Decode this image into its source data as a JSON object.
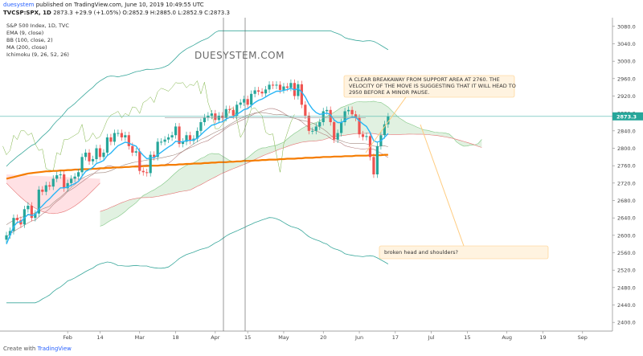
{
  "header": {
    "publisher_line": "published on TradingView.com, June 10, 2019 10:49:55 UTC",
    "publisher": "duesystem",
    "symbol": "TVCSP:SPX, 1D",
    "ohlc": "2873.3 +29.9 (+1.05%) O:2852.9 H:2885.0 L:2852.9 C:2873.3"
  },
  "legend": {
    "title": "S&P 500 Index, 1D, TVC",
    "indicators": [
      "EMA (9, close)",
      "BB (100, close, 2)",
      "MA (200, close)",
      "Ichimoku (9, 26, 52, 26)"
    ]
  },
  "watermark": "DUESYSTEM.COM",
  "footer": {
    "prefix": "Create with",
    "brand": "TradingView"
  },
  "annotations": {
    "breakaway": "A CLEAR BREAKAWAY FROM SUPPORT AREA AT 2760. THE VELOCITY OF THE MOVE IS SUGGESTING THAT IT WILL HEAD TO 2950 BEFORE A MINOR PAUSE.",
    "breakaway_lines": [
      "A CLEAR BREAKAWAY FROM SUPPORT AREA AT 2760. THE",
      "VELOCITY OF THE MOVE IS SUGGESTING THAT IT WILL HEAD TO",
      "2950 BEFORE A MINOR PAUSE."
    ],
    "shoulders": "broken head and shoulders?"
  },
  "colors": {
    "up": "#26a69a",
    "down": "#ef5350",
    "ema": "#29b6f6",
    "bb": "#3aa89c",
    "ma": "#f57c00",
    "ichimoku_kijun": "#a1887f",
    "cloud_up": "#c8e6c9",
    "cloud_down": "#ffcdd2",
    "note_bg": "#fff3e0",
    "note_border": "#ffcc80"
  },
  "chart_data": {
    "type": "candlestick",
    "title": "S&P 500 Index, 1D, TVC",
    "last_price": 2873.3,
    "last_price_label": "2873.3",
    "ylim": [
      2380,
      3100
    ],
    "y_ticks": [
      2400,
      2440,
      2480,
      2520,
      2560,
      2600,
      2640,
      2680,
      2720,
      2760,
      2800,
      2840,
      2880,
      2920,
      2960,
      3000,
      3040,
      3080
    ],
    "y_tick_labels": [
      "2400.0",
      "2440.0",
      "2480.0",
      "2520.0",
      "2560.0",
      "2600.0",
      "2640.0",
      "2680.0",
      "2720.0",
      "2760.0",
      "2800.0",
      "2840.0",
      "2880.0",
      "2920.0",
      "2960.0",
      "3000.0",
      "3040.0",
      "3080.0"
    ],
    "x_tick_labels": [
      "Feb",
      "14",
      "Mar",
      "18",
      "Apr",
      "15",
      "May",
      "20",
      "Jun",
      "17",
      "Jul",
      "15",
      "Aug",
      "19",
      "Sep"
    ],
    "x_tick_bars": [
      17,
      26,
      37,
      47,
      58,
      67,
      77,
      88,
      98,
      108,
      118,
      128,
      139,
      149,
      160
    ],
    "bar_range": [
      0,
      162
    ],
    "candle_closes": [
      2600,
      2610,
      2640,
      2635,
      2625,
      2660,
      2668,
      2640,
      2650,
      2705,
      2700,
      2715,
      2712,
      2730,
      2738,
      2740,
      2708,
      2720,
      2730,
      2735,
      2745,
      2780,
      2790,
      2770,
      2775,
      2800,
      2780,
      2790,
      2825,
      2815,
      2835,
      2835,
      2825,
      2830,
      2805,
      2790,
      2793,
      2748,
      2745,
      2743,
      2785,
      2780,
      2815,
      2815,
      2820,
      2825,
      2830,
      2850,
      2810,
      2815,
      2830,
      2817,
      2822,
      2840,
      2860,
      2871,
      2875,
      2880,
      2865,
      2875,
      2870,
      2890,
      2888,
      2875,
      2900,
      2905,
      2913,
      2900,
      2925,
      2933,
      2930,
      2926,
      2935,
      2946,
      2944,
      2946,
      2934,
      2942,
      2939,
      2950,
      2920,
      2947,
      2900,
      2875,
      2840,
      2840,
      2850,
      2860,
      2885,
      2888,
      2860,
      2820,
      2835,
      2860,
      2885,
      2888,
      2878,
      2870,
      2832,
      2826,
      2828,
      2780,
      2740,
      2805,
      2830,
      2855,
      2873
    ],
    "ema9": [
      2580,
      2600,
      2620,
      2630,
      2631,
      2640,
      2648,
      2646,
      2647,
      2660,
      2668,
      2677,
      2684,
      2693,
      2701,
      2709,
      2709,
      2711,
      2715,
      2719,
      2724,
      2736,
      2747,
      2751,
      2756,
      2765,
      2768,
      2772,
      2783,
      2789,
      2798,
      2806,
      2810,
      2814,
      2812,
      2808,
      2805,
      2793,
      2784,
      2776,
      2778,
      2778,
      2785,
      2791,
      2797,
      2803,
      2808,
      2816,
      2815,
      2815,
      2818,
      2818,
      2819,
      2823,
      2831,
      2839,
      2846,
      2853,
      2855,
      2859,
      2861,
      2867,
      2871,
      2872,
      2878,
      2883,
      2889,
      2891,
      2898,
      2905,
      2910,
      2913,
      2918,
      2923,
      2927,
      2931,
      2931,
      2933,
      2935,
      2938,
      2934,
      2937,
      2929,
      2918,
      2902,
      2890,
      2882,
      2878,
      2879,
      2881,
      2877,
      2865,
      2859,
      2859,
      2864,
      2869,
      2871,
      2871,
      2863,
      2856,
      2850,
      2836,
      2817,
      2814,
      2817,
      2825,
      2834
    ],
    "ma200": [
      2730,
      2732,
      2734,
      2736,
      2738,
      2740,
      2742,
      2743,
      2744,
      2745,
      2746,
      2747,
      2747,
      2748,
      2748,
      2749,
      2749,
      2750,
      2750,
      2751,
      2751,
      2752,
      2752,
      2752,
      2753,
      2753,
      2754,
      2754,
      2755,
      2755,
      2756,
      2756,
      2756,
      2757,
      2757,
      2758,
      2758,
      2758,
      2759,
      2759,
      2760,
      2760,
      2760,
      2761,
      2761,
      2762,
      2762,
      2762,
      2763,
      2763,
      2764,
      2764,
      2765,
      2765,
      2765,
      2766,
      2766,
      2767,
      2767,
      2768,
      2768,
      2768,
      2769,
      2769,
      2770,
      2770,
      2771,
      2771,
      2771,
      2772,
      2772,
      2773,
      2773,
      2774,
      2774,
      2774,
      2775,
      2775,
      2776,
      2776,
      2776,
      2777,
      2777,
      2778,
      2778,
      2778,
      2779,
      2779,
      2780,
      2780,
      2780,
      2781,
      2781,
      2781,
      2782,
      2782,
      2782,
      2783,
      2783,
      2783,
      2783,
      2784,
      2784,
      2784,
      2784,
      2785,
      2785
    ]
  }
}
